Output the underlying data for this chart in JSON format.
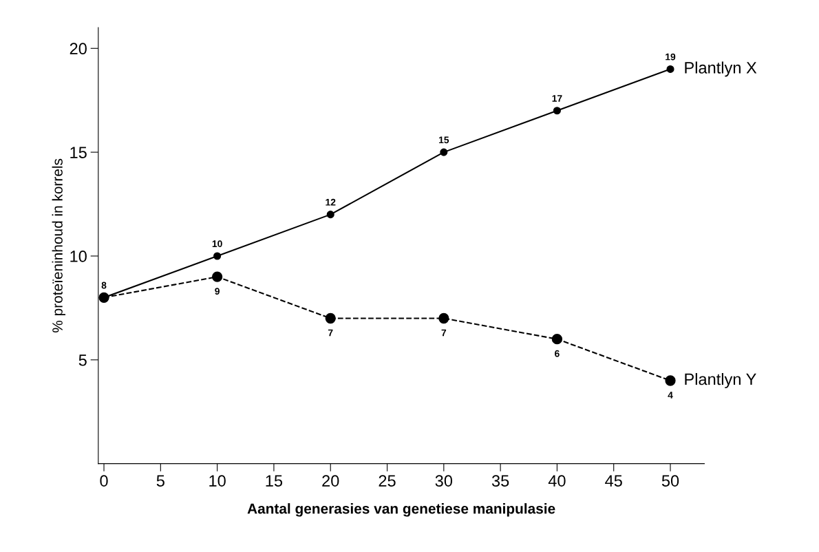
{
  "chart_data": {
    "type": "line",
    "xlabel": "Aantal generasies van genetiese manipulasie",
    "ylabel": "% proteïeninhoud in korrels",
    "x": [
      0,
      10,
      20,
      30,
      40,
      50
    ],
    "series": [
      {
        "name": "Plantlyn X",
        "color": "#000000",
        "line_style": "solid",
        "values": [
          8,
          10,
          12,
          15,
          17,
          19
        ],
        "value_labels": [
          "8",
          "10",
          "12",
          "15",
          "17",
          "19"
        ]
      },
      {
        "name": "Plantlyn Y",
        "color": "#000000",
        "line_style": "dashed",
        "values": [
          8,
          9,
          7,
          7,
          6,
          4
        ],
        "value_labels": [
          null,
          "9",
          "7",
          "7",
          "6",
          "4"
        ]
      }
    ],
    "xlim": [
      -0.5,
      53
    ],
    "ylim": [
      0,
      21
    ],
    "xticks": [
      0,
      5,
      10,
      15,
      20,
      25,
      30,
      35,
      40,
      45,
      50
    ],
    "yticks": [
      5,
      10,
      15,
      20
    ],
    "marker": "circle",
    "grid": false,
    "legend": false
  }
}
